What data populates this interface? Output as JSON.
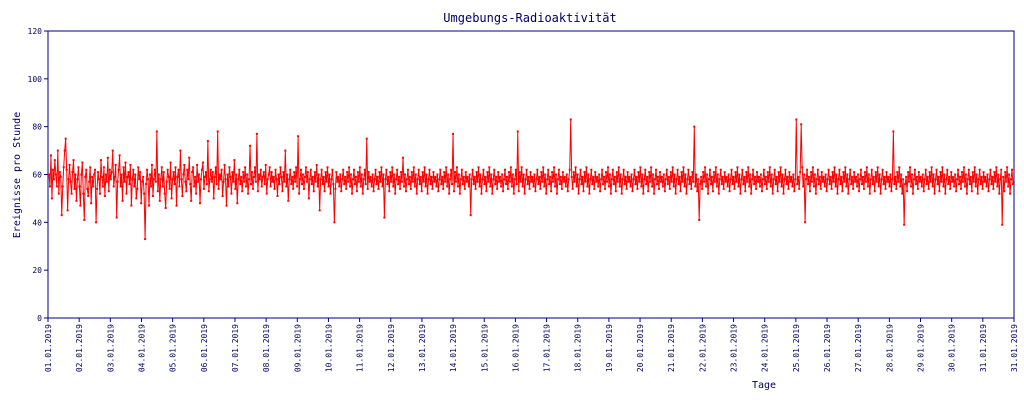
{
  "chart_data": {
    "type": "line",
    "title": "Umgebungs-Radioaktivität",
    "xlabel": "Tage",
    "ylabel": "Ereignisse pro Stunde",
    "ylim": [
      0,
      120
    ],
    "yticks": [
      0,
      20,
      40,
      60,
      80,
      100,
      120
    ],
    "xticks": [
      "01.01.2019",
      "02.01.2019",
      "03.01.2019",
      "04.01.2019",
      "05.01.2019",
      "06.01.2019",
      "07.01.2019",
      "08.01.2019",
      "09.01.2019",
      "10.01.2019",
      "11.01.2019",
      "12.01.2019",
      "13.01.2019",
      "14.01.2019",
      "15.01.2019",
      "16.01.2019",
      "17.01.2019",
      "18.01.2019",
      "19.01.2019",
      "20.01.2019",
      "21.01.2019",
      "22.01.2019",
      "23.01.2019",
      "24.01.2019",
      "25.01.2019",
      "26.01.2019",
      "27.01.2019",
      "28.01.2019",
      "29.01.2019",
      "30.01.2019",
      "31.01.2019",
      "31.01.2019"
    ],
    "grid": false,
    "color": "#ff0000",
    "series": [
      {
        "values": [
          60,
          55,
          68,
          50,
          62,
          58,
          66,
          60,
          55,
          70,
          52,
          61,
          59,
          43,
          55,
          63,
          70,
          75,
          62,
          45,
          58,
          64,
          57,
          52,
          61,
          66,
          54,
          60,
          49,
          58,
          63,
          55,
          47,
          60,
          65,
          52,
          41,
          59,
          62,
          54,
          51,
          57,
          63,
          48,
          59,
          55,
          60,
          62,
          40,
          54,
          61,
          58,
          52,
          66,
          59,
          55,
          63,
          51,
          60,
          57,
          67,
          53,
          62,
          58,
          61,
          70,
          55,
          59,
          64,
          42,
          57,
          62,
          68,
          55,
          60,
          49,
          63,
          57,
          65,
          52,
          59,
          61,
          56,
          64,
          47,
          58,
          62,
          55,
          60,
          50,
          54,
          63,
          58,
          61,
          48,
          57,
          59,
          52,
          33,
          56,
          62,
          58,
          47,
          60,
          55,
          64,
          51,
          58,
          62,
          57,
          78,
          53,
          60,
          49,
          58,
          63,
          55,
          61,
          52,
          46,
          57,
          62,
          59,
          54,
          65,
          50,
          58,
          61,
          56,
          63,
          47,
          59,
          62,
          55,
          70,
          58,
          51,
          60,
          64,
          57,
          53,
          62,
          58,
          67,
          56,
          49,
          61,
          63,
          55,
          59,
          52,
          64,
          57,
          60,
          48,
          58,
          62,
          65,
          54,
          59,
          61,
          56,
          74,
          53,
          58,
          62,
          57,
          61,
          50,
          59,
          63,
          56,
          78,
          54,
          60,
          58,
          62,
          51,
          57,
          64,
          58,
          47,
          60,
          55,
          63,
          59,
          52,
          61,
          57,
          66,
          54,
          60,
          48,
          58,
          62,
          56,
          59,
          53,
          61,
          57,
          63,
          55,
          60,
          52,
          58,
          72,
          56,
          61,
          54,
          59,
          63,
          57,
          77,
          53,
          60,
          58,
          62,
          55,
          59,
          61,
          56,
          64,
          52,
          58,
          60,
          63,
          55,
          61,
          57,
          59,
          54,
          62,
          58,
          51,
          60,
          56,
          63,
          59,
          53,
          61,
          57,
          70,
          55,
          60,
          49,
          58,
          62,
          56,
          59,
          54,
          61,
          57,
          63,
          55,
          76,
          52,
          58,
          62,
          56,
          60,
          54,
          59,
          63,
          57,
          61,
          50,
          58,
          62,
          56,
          59,
          53,
          61,
          57,
          64,
          55,
          60,
          45,
          58,
          62,
          56,
          59,
          53,
          61,
          57,
          63,
          55,
          60,
          52,
          58,
          62,
          56,
          40,
          54,
          61,
          57,
          59,
          55,
          60,
          53,
          58,
          62,
          56,
          59,
          54,
          61,
          57,
          63,
          55,
          60,
          52,
          58,
          62,
          56,
          59,
          53,
          61,
          57,
          63,
          55,
          60,
          52,
          58,
          62,
          56,
          75,
          54,
          61,
          57,
          59,
          55,
          60,
          53,
          58,
          62,
          56,
          59,
          54,
          61,
          57,
          63,
          55,
          60,
          42,
          58,
          62,
          56,
          59,
          53,
          61,
          57,
          63,
          55,
          60,
          52,
          58,
          62,
          56,
          59,
          54,
          61,
          57,
          67,
          55,
          60,
          53,
          58,
          62,
          56,
          59,
          54,
          61,
          57,
          63,
          55,
          60,
          52,
          58,
          62,
          56,
          59,
          53,
          61,
          57,
          63,
          55,
          60,
          52,
          58,
          62,
          56,
          59,
          54,
          61,
          57,
          59,
          55,
          60,
          53,
          58,
          62,
          56,
          59,
          54,
          61,
          57,
          63,
          55,
          60,
          52,
          58,
          62,
          56,
          77,
          53,
          61,
          57,
          63,
          55,
          60,
          52,
          58,
          62,
          56,
          59,
          54,
          61,
          57,
          59,
          55,
          60,
          43,
          58,
          62,
          56,
          59,
          54,
          61,
          57,
          63,
          55,
          60,
          52,
          58,
          62,
          56,
          59,
          53,
          61,
          57,
          63,
          55,
          60,
          52,
          58,
          62,
          56,
          59,
          54,
          61,
          57,
          59,
          55,
          60,
          53,
          58,
          62,
          56,
          59,
          54,
          61,
          57,
          63,
          55,
          60,
          52,
          58,
          62,
          56,
          78,
          53,
          61,
          57,
          63,
          55,
          60,
          52,
          58,
          62,
          56,
          59,
          54,
          61,
          57,
          59,
          55,
          60,
          53,
          58,
          62,
          56,
          59,
          54,
          61,
          57,
          63,
          55,
          60,
          52,
          58,
          62,
          56,
          59,
          53,
          61,
          57,
          63,
          55,
          60,
          52,
          58,
          62,
          56,
          59,
          54,
          61,
          57,
          59,
          55,
          60,
          53,
          58,
          62,
          83,
          59,
          54,
          61,
          57,
          63,
          55,
          60,
          52,
          58,
          62,
          56,
          59,
          53,
          61,
          57,
          63,
          55,
          60,
          52,
          58,
          62,
          56,
          59,
          54,
          61,
          57,
          59,
          55,
          60,
          53,
          58,
          62,
          56,
          59,
          54,
          61,
          57,
          63,
          55,
          60,
          52,
          58,
          62,
          56,
          59,
          53,
          61,
          57,
          63,
          55,
          60,
          52,
          58,
          62,
          56,
          59,
          54,
          61,
          57,
          59,
          55,
          60,
          53,
          58,
          62,
          56,
          59,
          54,
          61,
          57,
          63,
          55,
          60,
          52,
          58,
          62,
          56,
          59,
          53,
          61,
          57,
          63,
          55,
          60,
          52,
          58,
          62,
          56,
          59,
          54,
          61,
          57,
          59,
          55,
          60,
          53,
          58,
          62,
          56,
          59,
          54,
          61,
          57,
          63,
          55,
          60,
          52,
          58,
          62,
          56,
          59,
          53,
          61,
          57,
          63,
          55,
          60,
          52,
          58,
          62,
          56,
          59,
          54,
          61,
          57,
          80,
          55,
          60,
          53,
          58,
          41,
          56,
          59,
          54,
          61,
          57,
          63,
          55,
          60,
          52,
          58,
          62,
          56,
          59,
          53,
          61,
          57,
          63,
          55,
          60,
          52,
          58,
          62,
          56,
          59,
          54,
          61,
          57,
          59,
          55,
          60,
          53,
          58,
          62,
          56,
          59,
          54,
          61,
          57,
          63,
          55,
          60,
          52,
          58,
          62,
          56,
          59,
          53,
          61,
          57,
          63,
          55,
          60,
          52,
          58,
          62,
          56,
          59,
          54,
          61,
          57,
          59,
          55,
          60,
          53,
          58,
          62,
          56,
          59,
          54,
          61,
          57,
          63,
          55,
          60,
          52,
          58,
          62,
          56,
          59,
          53,
          61,
          57,
          63,
          55,
          60,
          52,
          58,
          62,
          56,
          59,
          54,
          61,
          57,
          59,
          55,
          60,
          53,
          58,
          83,
          56,
          59,
          54,
          61,
          81,
          63,
          55,
          60,
          40,
          58,
          62,
          56,
          59,
          53,
          61,
          57,
          63,
          55,
          60,
          52,
          58,
          62,
          56,
          59,
          54,
          61,
          57,
          59,
          55,
          60,
          53,
          58,
          62,
          56,
          59,
          54,
          61,
          57,
          63,
          55,
          60,
          52,
          58,
          62,
          56,
          59,
          53,
          61,
          57,
          63,
          55,
          60,
          52,
          58,
          62,
          56,
          59,
          54,
          61,
          57,
          59,
          55,
          60,
          53,
          58,
          62,
          56,
          59,
          54,
          61,
          57,
          63,
          55,
          60,
          52,
          58,
          62,
          56,
          59,
          53,
          61,
          57,
          63,
          55,
          60,
          52,
          58,
          62,
          56,
          59,
          54,
          61,
          57,
          59,
          55,
          60,
          53,
          58,
          78,
          56,
          59,
          54,
          61,
          57,
          63,
          55,
          60,
          52,
          58,
          39,
          56,
          59,
          53,
          61,
          57,
          63,
          55,
          60,
          52,
          58,
          62,
          56,
          59,
          54,
          61,
          57,
          59,
          55,
          60,
          53,
          58,
          62,
          56,
          59,
          54,
          61,
          57,
          63,
          55,
          60,
          52,
          58,
          62,
          56,
          59,
          53,
          61,
          57,
          63,
          55,
          60,
          52,
          58,
          62,
          56,
          59,
          54,
          61,
          57,
          59,
          55,
          60,
          53,
          58,
          62,
          56,
          59,
          54,
          61,
          57,
          63,
          55,
          60,
          52,
          58,
          62,
          56,
          59,
          53,
          61,
          57,
          63,
          55,
          60,
          52,
          58,
          62,
          56,
          59,
          54,
          61,
          57,
          59,
          55,
          60,
          53,
          58,
          62,
          56,
          59,
          54,
          61,
          57,
          63,
          55,
          60,
          52,
          58,
          62,
          39,
          59,
          53,
          61,
          57,
          63,
          55,
          60,
          52,
          58,
          62,
          56
        ]
      }
    ]
  }
}
